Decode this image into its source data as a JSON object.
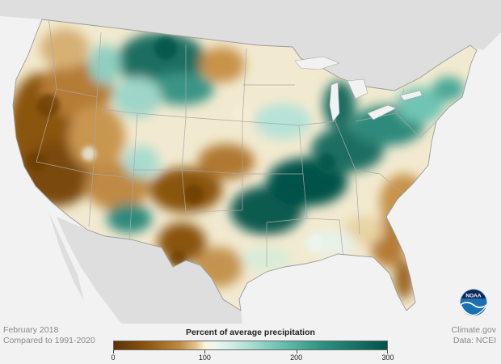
{
  "footer": {
    "date": "February 2018",
    "baseline": "Compared to 1991-2020",
    "source": "Climate.gov",
    "data_credit": "Data: NCEI"
  },
  "legend": {
    "title": "Percent of average precipitation",
    "ticks": [
      {
        "label": "0",
        "value": 0
      },
      {
        "label": "100",
        "value": 100
      },
      {
        "label": "200",
        "value": 200
      },
      {
        "label": "300",
        "value": 300
      }
    ],
    "min": 0,
    "max": 300,
    "colors": {
      "dry": "#5a3200",
      "normal": "#fbf4dc",
      "wet": "#04524a"
    }
  },
  "logo": {
    "text": "NOAA",
    "color": "#1a6fb5"
  },
  "map": {
    "land_color": "#dedede",
    "ocean_color": "#f2f2f2",
    "border_color": "#a8a8a8"
  }
}
